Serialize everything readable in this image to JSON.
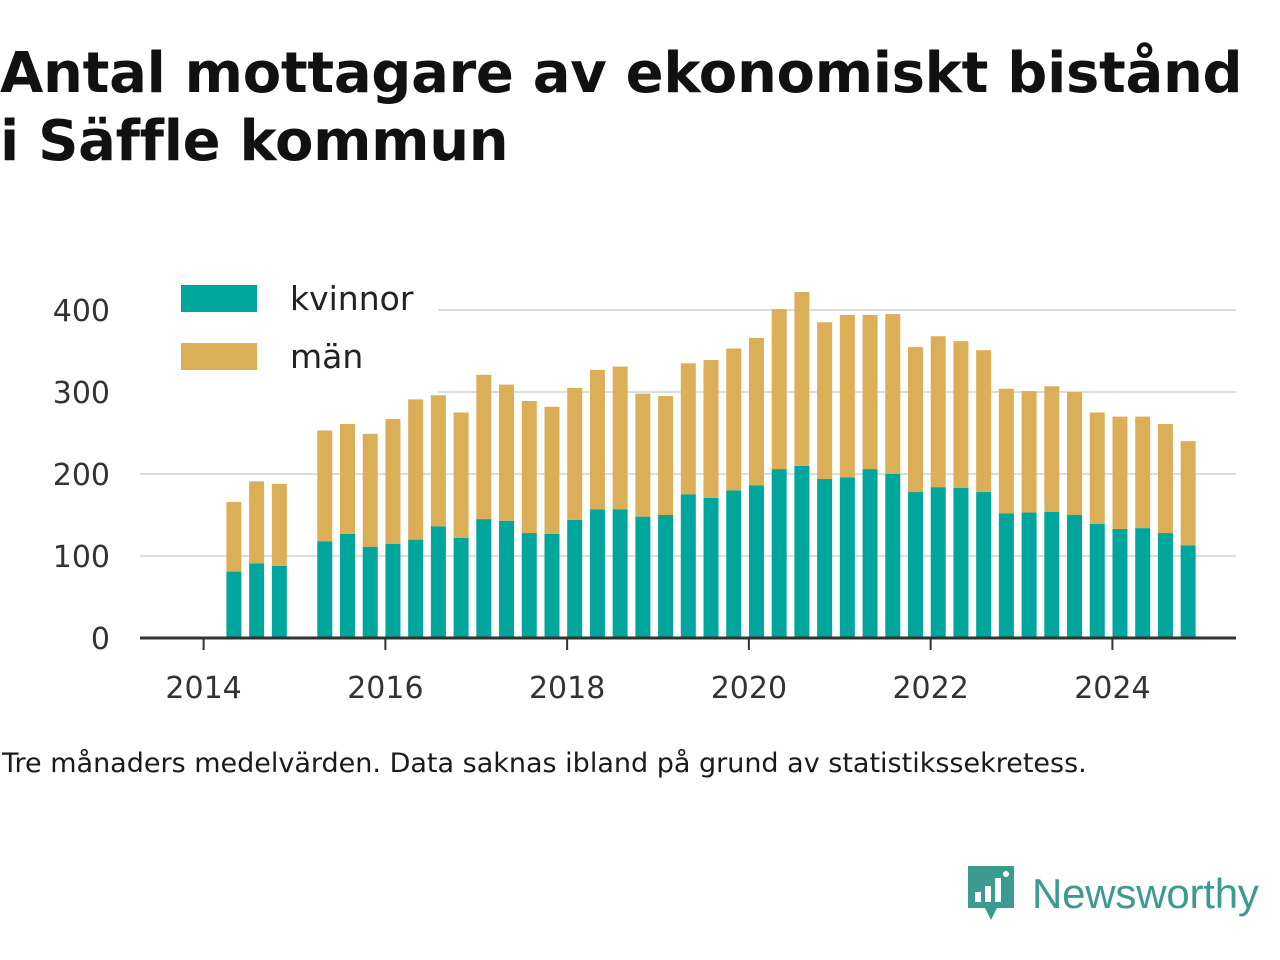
{
  "title": "Antal mottagare av ekonomiskt bistånd i Säffle kommun",
  "note": "Tre månaders medelvärden. Data saknas ibland på grund av statistikssekretess.",
  "brand": {
    "name": "Newsworthy",
    "icon": "newsworthy-logo-icon",
    "color": "#3d9a8f"
  },
  "colors": {
    "kvinnor": "#00a69c",
    "man": "#dbae58",
    "grid": "#dddddd",
    "axis": "#333333"
  },
  "chart_data": {
    "type": "bar",
    "stacked": true,
    "title": "Antal mottagare av ekonomiskt bistånd i Säffle kommun",
    "xlabel": "",
    "ylabel": "",
    "ylim": [
      0,
      430
    ],
    "yticks": [
      0,
      100,
      200,
      300,
      400
    ],
    "xticks": [
      "2014",
      "2016",
      "2018",
      "2020",
      "2022",
      "2024"
    ],
    "grid": true,
    "legend_position": "top-left",
    "x": [
      "2014-05",
      "2014-08",
      "2014-11",
      "2015-05",
      "2015-08",
      "2015-11",
      "2016-02",
      "2016-05",
      "2016-08",
      "2016-11",
      "2017-02",
      "2017-05",
      "2017-08",
      "2017-11",
      "2018-02",
      "2018-05",
      "2018-08",
      "2018-11",
      "2019-02",
      "2019-05",
      "2019-08",
      "2019-11",
      "2020-02",
      "2020-05",
      "2020-08",
      "2020-11",
      "2021-02",
      "2021-05",
      "2021-08",
      "2021-11",
      "2022-02",
      "2022-05",
      "2022-08",
      "2022-11",
      "2023-02",
      "2023-05",
      "2023-08",
      "2023-11",
      "2024-02",
      "2024-05",
      "2024-08",
      "2024-11"
    ],
    "series": [
      {
        "name": "kvinnor",
        "color": "#00a69c",
        "values": [
          81,
          91,
          88,
          118,
          127,
          111,
          115,
          120,
          136,
          122,
          145,
          143,
          128,
          127,
          144,
          157,
          157,
          148,
          150,
          175,
          171,
          180,
          186,
          206,
          210,
          194,
          196,
          206,
          200,
          178,
          184,
          183,
          178,
          152,
          153,
          154,
          150,
          139,
          133,
          134,
          128,
          113
        ]
      },
      {
        "name": "män",
        "color": "#dbae58",
        "values": [
          85,
          100,
          100,
          135,
          134,
          138,
          152,
          171,
          160,
          153,
          176,
          166,
          161,
          155,
          161,
          170,
          174,
          150,
          145,
          160,
          168,
          173,
          180,
          195,
          212,
          191,
          198,
          188,
          195,
          177,
          184,
          179,
          173,
          152,
          148,
          153,
          150,
          136,
          137,
          136,
          133,
          127
        ]
      }
    ]
  }
}
